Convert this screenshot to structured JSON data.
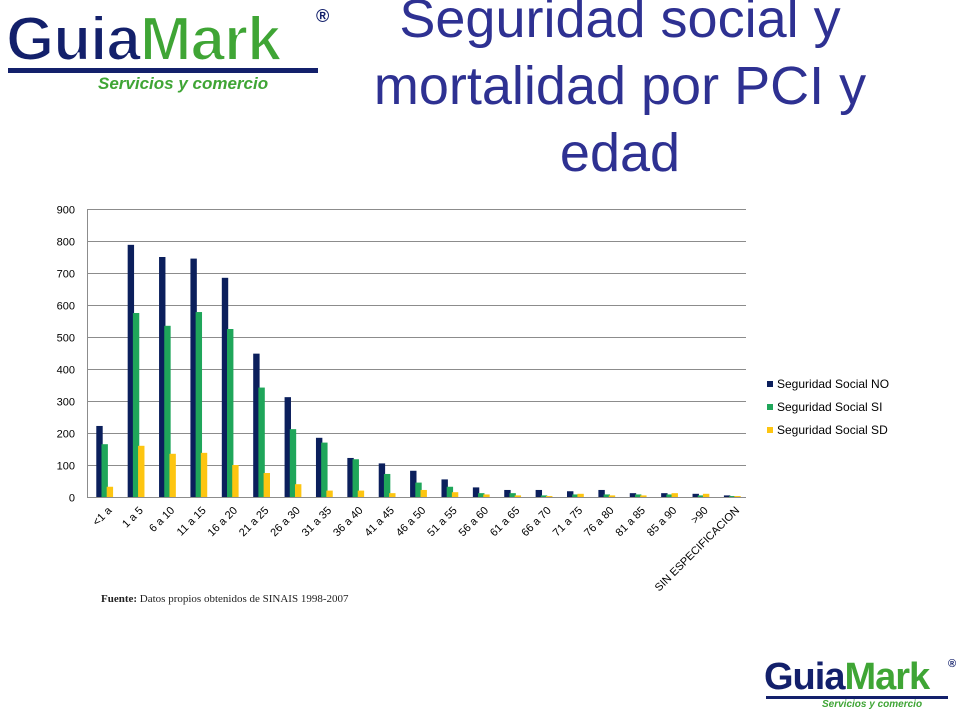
{
  "logo": {
    "part1": "Guia",
    "part2": "Mark",
    "registered": "®",
    "tagline": "Servicios y comercio"
  },
  "title": {
    "line1": "Seguridad social y",
    "line2": "mortalidad por PCI y",
    "line3": "edad"
  },
  "source": {
    "label": "Fuente:",
    "text": "Datos propios obtenidos de SINAIS 1998-2007"
  },
  "chart_data": {
    "type": "bar",
    "categories": [
      "<1 a",
      "1 a 5",
      "6 a 10",
      "11 a 15",
      "16 a 20",
      "21 a 25",
      "26 a 30",
      "31 a 35",
      "36 a 40",
      "41 a 45",
      "46 a 50",
      "51 a 55",
      "56 a 60",
      "61 a 65",
      "66 a 70",
      "71 a 75",
      "76 a 80",
      "81 a 85",
      "85 a 90",
      ">90",
      "SIN ESPECIFICACION"
    ],
    "series": [
      {
        "name": "Seguridad Social NO",
        "color": "#0b1f5c",
        "values": [
          222,
          788,
          750,
          745,
          685,
          448,
          312,
          185,
          122,
          105,
          82,
          55,
          30,
          22,
          22,
          18,
          22,
          12,
          12,
          10,
          5
        ]
      },
      {
        "name": "Seguridad Social SI",
        "color": "#1fa65a",
        "values": [
          165,
          575,
          535,
          578,
          525,
          342,
          212,
          170,
          118,
          72,
          45,
          32,
          12,
          12,
          5,
          8,
          8,
          8,
          8,
          5,
          3
        ]
      },
      {
        "name": "Seguridad Social SD",
        "color": "#fdc511",
        "values": [
          32,
          160,
          135,
          138,
          100,
          75,
          40,
          20,
          20,
          12,
          22,
          15,
          8,
          5,
          3,
          10,
          5,
          5,
          12,
          10,
          3
        ]
      }
    ],
    "ylim": [
      0,
      900
    ],
    "yticks": [
      0,
      100,
      200,
      300,
      400,
      500,
      600,
      700,
      800,
      900
    ],
    "grid": true,
    "legend_position": "right"
  }
}
